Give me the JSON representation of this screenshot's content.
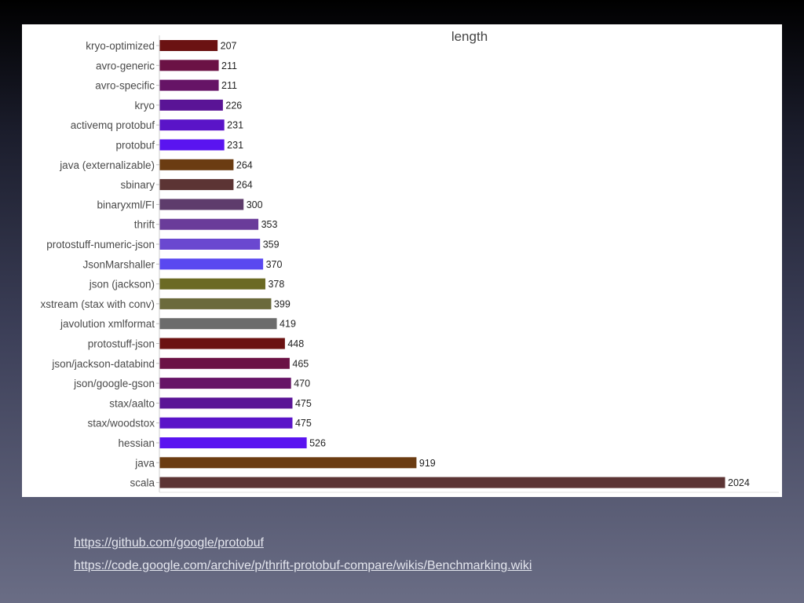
{
  "slide": {
    "links": [
      "https://github.com/google/protobuf",
      "https://code.google.com/archive/p/thrift-protobuf-compare/wikis/Benchmarking.wiki"
    ]
  },
  "chart_data": {
    "type": "bar",
    "orientation": "horizontal",
    "title": "length",
    "xlabel": "",
    "ylabel": "",
    "xlim": [
      0,
      2100
    ],
    "grid": false,
    "legend": "none",
    "categories": [
      "kryo-optimized",
      "avro-generic",
      "avro-specific",
      "kryo",
      "activemq protobuf",
      "protobuf",
      "java (externalizable)",
      "sbinary",
      "binaryxml/FI",
      "thrift",
      "protostuff-numeric-json",
      "JsonMarshaller",
      "json (jackson)",
      "xstream (stax with conv)",
      "javolution xmlformat",
      "protostuff-json",
      "json/jackson-databind",
      "json/google-gson",
      "stax/aalto",
      "stax/woodstox",
      "hessian",
      "java",
      "scala"
    ],
    "values": [
      207,
      211,
      211,
      226,
      231,
      231,
      264,
      264,
      300,
      353,
      359,
      370,
      378,
      399,
      419,
      448,
      465,
      470,
      475,
      475,
      526,
      919,
      2024
    ],
    "colors": [
      "#6b1212",
      "#6b1245",
      "#661466",
      "#5a1496",
      "#5a14c8",
      "#5a14f0",
      "#6b3c12",
      "#5c3434",
      "#5e3c6c",
      "#6a3c9a",
      "#6a48d0",
      "#5a48f0",
      "#6b6a24",
      "#6b6a3c",
      "#6c6c6c",
      "#6b1212",
      "#6b1245",
      "#661466",
      "#5a1496",
      "#5a14c8",
      "#5a14f0",
      "#6b3c12",
      "#5c3434"
    ]
  }
}
